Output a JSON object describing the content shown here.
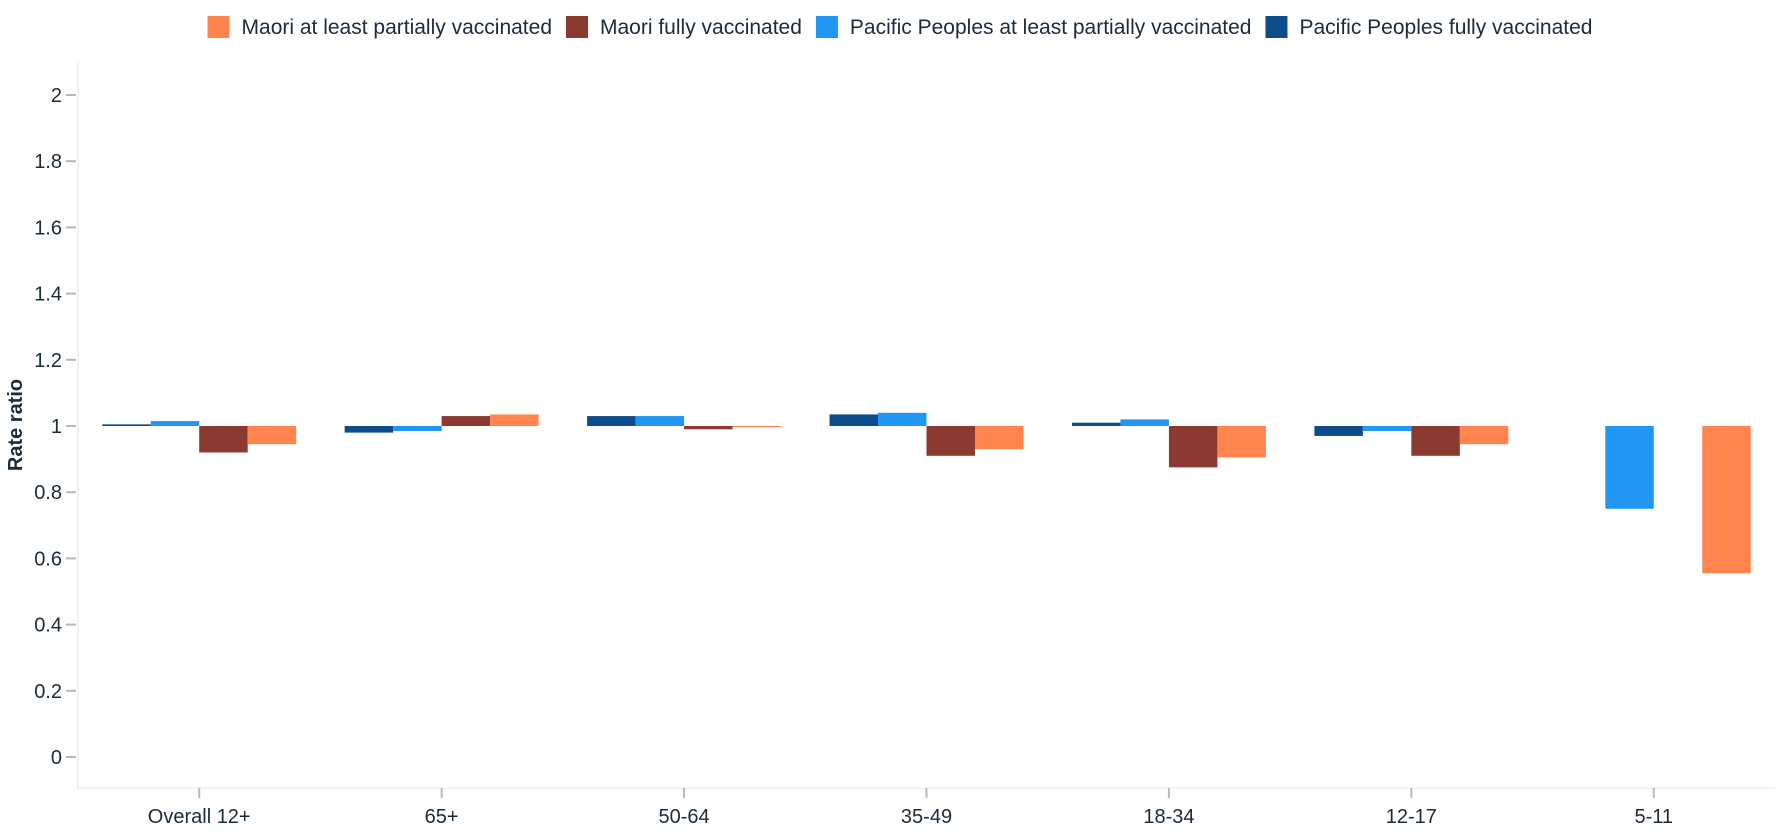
{
  "chart_data": {
    "type": "bar",
    "ylabel": "Rate ratio",
    "xlabel": "",
    "ylim": [
      -0.1,
      2.1
    ],
    "baseline": 1,
    "y_ticks": [
      0,
      0.2,
      0.4,
      0.6,
      0.8,
      1,
      1.2,
      1.4,
      1.6,
      1.8,
      2
    ],
    "y_tick_labels": [
      "0",
      "0.2",
      "0.4",
      "0.6",
      "0.8",
      "1",
      "1.2",
      "1.4",
      "1.6",
      "1.8",
      "2"
    ],
    "grid": false,
    "legend_position": "top",
    "categories": [
      "Overall 12+",
      "65+",
      "50-64",
      "35-49",
      "18-34",
      "12-17",
      "5-11"
    ],
    "series": [
      {
        "name": "Pacific Peoples fully vaccinated",
        "color": "#0d4c8b",
        "values": [
          1.005,
          0.98,
          1.03,
          1.035,
          1.01,
          0.97,
          null
        ]
      },
      {
        "name": "Pacific Peoples at least partially vaccinated",
        "color": "#2196f3",
        "values": [
          1.015,
          0.985,
          1.03,
          1.04,
          1.02,
          0.985,
          0.75
        ]
      },
      {
        "name": "Maori fully vaccinated",
        "color": "#8b3a31",
        "values": [
          0.92,
          1.03,
          0.99,
          0.91,
          0.875,
          0.91,
          null
        ]
      },
      {
        "name": "Maori at least partially vaccinated",
        "color": "#ff8450",
        "values": [
          0.945,
          1.035,
          0.997,
          0.93,
          0.905,
          0.945,
          0.555
        ]
      }
    ],
    "legend_order": [
      3,
      2,
      1,
      0
    ]
  }
}
